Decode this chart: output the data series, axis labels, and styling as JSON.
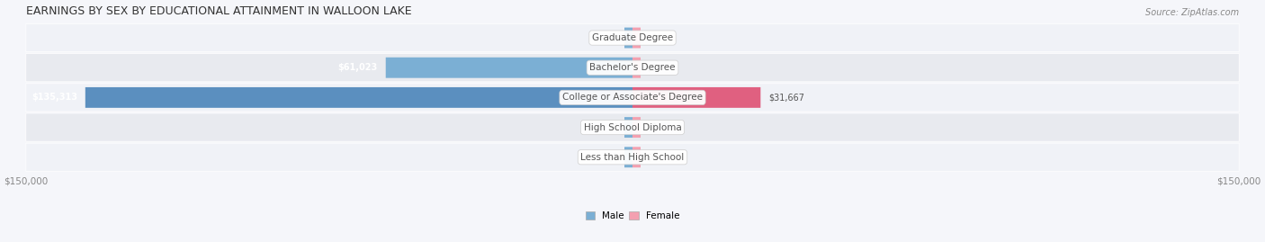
{
  "title": "EARNINGS BY SEX BY EDUCATIONAL ATTAINMENT IN WALLOON LAKE",
  "source": "Source: ZipAtlas.com",
  "categories": [
    "Less than High School",
    "High School Diploma",
    "College or Associate's Degree",
    "Bachelor's Degree",
    "Graduate Degree"
  ],
  "male_values": [
    0,
    0,
    135313,
    61023,
    0
  ],
  "female_values": [
    0,
    0,
    31667,
    0,
    0
  ],
  "max_value": 150000,
  "male_color": "#7bafd4",
  "male_color_dark": "#5b8fbf",
  "female_color": "#f4a0b0",
  "female_color_dark": "#e06080",
  "bar_bg_color": "#e8eaf0",
  "row_bg_color": "#f0f2f7",
  "row_bg_color_alt": "#e8eaef",
  "label_color": "#555555",
  "title_color": "#333333",
  "axis_label_color": "#888888",
  "background_color": "#f5f6fa"
}
